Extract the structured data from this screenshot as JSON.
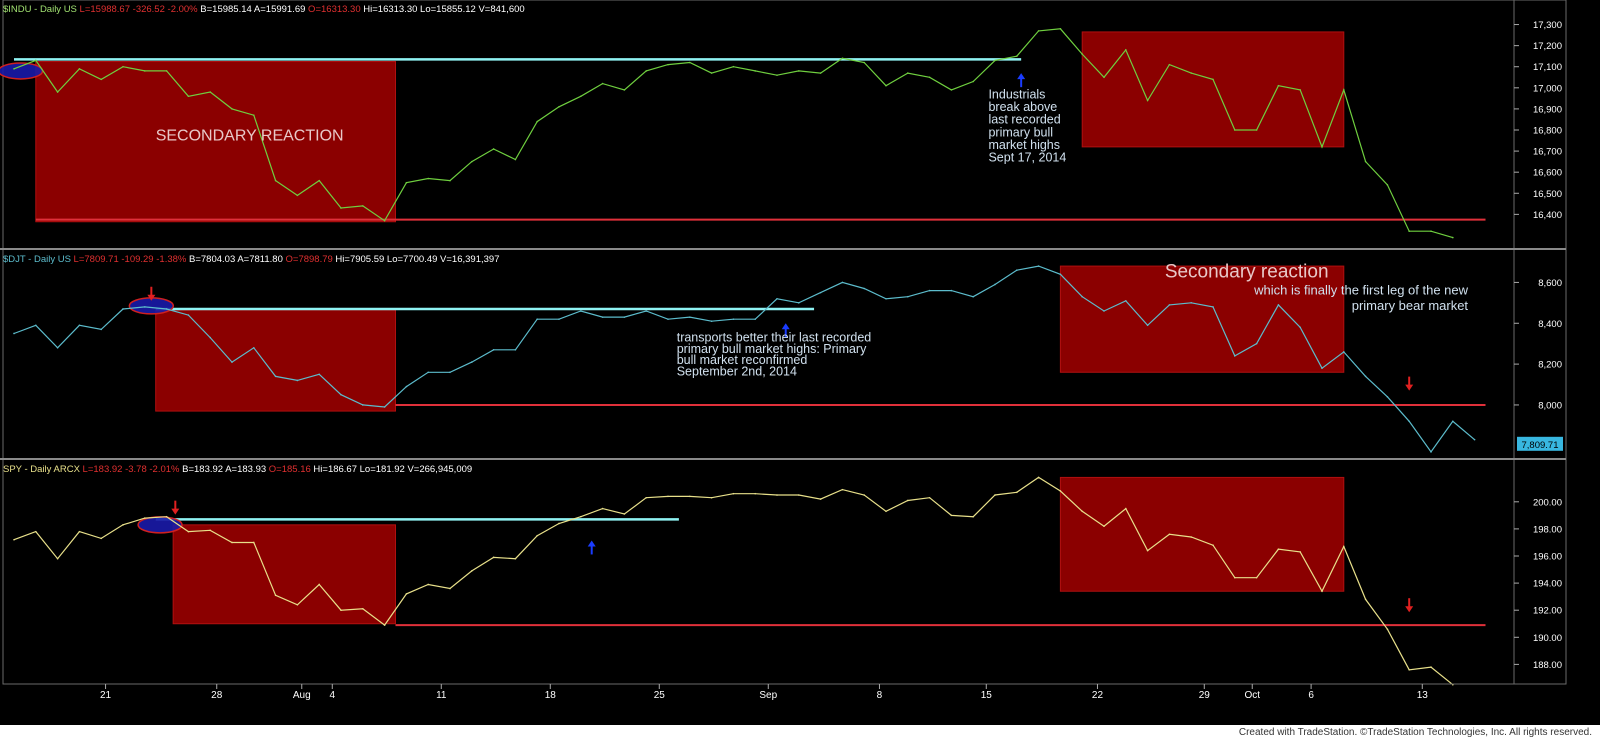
{
  "footer": "Created with TradeStation. ©TradeStation Technologies, Inc. All rights reserved.",
  "colors": {
    "indu": "#6fcf3f",
    "djt": "#5cbccc",
    "spy": "#e8e08a",
    "box_fill": "#8b0000",
    "support_line": "#e0303a",
    "resistance_line": "#8ff3f3",
    "up_arrow": "#1a3cff",
    "down_arrow": "#e02020",
    "last_price_tag": "#38b7e0"
  },
  "chart_data": [
    {
      "type": "line",
      "panel": "top",
      "header": [
        {
          "text": "$INDU - Daily  US",
          "color": "#a0e070"
        },
        {
          "text": "L=15988.67",
          "color": "#e03030"
        },
        {
          "text": "-326.52",
          "color": "#e03030"
        },
        {
          "text": "-2.00%",
          "color": "#e03030"
        },
        {
          "text": "B=15985.14",
          "color": "#ffffff"
        },
        {
          "text": "A=15991.69",
          "color": "#ffffff"
        },
        {
          "text": "O=16313.30",
          "color": "#e03030"
        },
        {
          "text": "Hi=16313.30",
          "color": "#ffffff"
        },
        {
          "text": "Lo=15855.12",
          "color": "#ffffff"
        },
        {
          "text": "V=841,600",
          "color": "#ffffff"
        }
      ],
      "ylim": [
        16250,
        17350
      ],
      "yticks": [
        16400,
        16500,
        16600,
        16700,
        16800,
        16900,
        17000,
        17100,
        17200,
        17300
      ],
      "ytick_labels": [
        "16,400",
        "16,500",
        "16,600",
        "16,700",
        "16,800",
        "16,900",
        "17,000",
        "17,100",
        "17,200",
        "17,300"
      ],
      "series": [
        {
          "values": [
            17090,
            17130,
            16980,
            17090,
            17040,
            17100,
            17080,
            17080,
            16960,
            16980,
            16900,
            16870,
            16560,
            16490,
            16560,
            16430,
            16440,
            16370,
            16550,
            16570,
            16560,
            16650,
            16710,
            16660,
            16840,
            16910,
            16960,
            17020,
            16990,
            17080,
            17110,
            17120,
            17070,
            17100,
            17080,
            17060,
            17080,
            17070,
            17140,
            17120,
            17010,
            17070,
            17050,
            16990,
            17030,
            17130,
            17150,
            17270,
            17280,
            17160,
            17050,
            17180,
            16940,
            17110,
            17070,
            17040,
            16800,
            16800,
            17010,
            16990,
            16720,
            16990,
            16650,
            16540,
            16320,
            16320,
            16290
          ]
        }
      ],
      "boxes": [
        {
          "x0": 1,
          "x1": 17.5,
          "y0": 17125,
          "y1": 16365
        },
        {
          "x0": 49,
          "x1": 61,
          "y0": 17265,
          "y1": 16720
        }
      ],
      "support": {
        "x0": 1,
        "x1": 67.5,
        "y": 16375
      },
      "resistance": {
        "x0": 0,
        "x1": 46.2,
        "y": 17135
      },
      "ellipse": {
        "x": 0.3,
        "y": 17080
      },
      "up_arrows": [
        {
          "x": 46.2,
          "y": 17060
        }
      ],
      "down_arrows": [],
      "annotations": [
        {
          "text": "SECONDARY REACTION",
          "x": 6.5,
          "y": 16750,
          "anchor": "start",
          "size": 16,
          "color": "#e8c8c8"
        },
        {
          "text": "Industrials",
          "x": 44.7,
          "y": 16950,
          "anchor": "start",
          "size": 12.5,
          "color": "#d0e0ee"
        },
        {
          "text": "break above",
          "x": 44.7,
          "y": 16890,
          "anchor": "start",
          "size": 12.5,
          "color": "#d0e0ee"
        },
        {
          "text": "last recorded",
          "x": 44.7,
          "y": 16830,
          "anchor": "start",
          "size": 12.5,
          "color": "#d0e0ee"
        },
        {
          "text": "primary bull",
          "x": 44.7,
          "y": 16770,
          "anchor": "start",
          "size": 12.5,
          "color": "#d0e0ee"
        },
        {
          "text": "market highs",
          "x": 44.7,
          "y": 16710,
          "anchor": "start",
          "size": 12.5,
          "color": "#d0e0ee"
        },
        {
          "text": "Sept 17, 2014",
          "x": 44.7,
          "y": 16650,
          "anchor": "start",
          "size": 12.5,
          "color": "#d0e0ee"
        }
      ]
    },
    {
      "type": "line",
      "panel": "middle",
      "header": [
        {
          "text": "$DJT - Daily  US",
          "color": "#5cbccc"
        },
        {
          "text": "L=7809.71",
          "color": "#e03030"
        },
        {
          "text": "-109.29",
          "color": "#e03030"
        },
        {
          "text": "-1.38%",
          "color": "#e03030"
        },
        {
          "text": "B=7804.03",
          "color": "#ffffff"
        },
        {
          "text": "A=7811.80",
          "color": "#ffffff"
        },
        {
          "text": "O=7898.79",
          "color": "#e03030"
        },
        {
          "text": "Hi=7905.59",
          "color": "#ffffff"
        },
        {
          "text": "Lo=7700.49",
          "color": "#ffffff"
        },
        {
          "text": "V=16,391,397",
          "color": "#ffffff"
        }
      ],
      "ylim": [
        7750,
        8700
      ],
      "yticks": [
        8000,
        8200,
        8400,
        8600
      ],
      "ytick_labels": [
        "8,000",
        "8,200",
        "8,400",
        "8,600"
      ],
      "series": [
        {
          "values": [
            8350,
            8390,
            8280,
            8390,
            8370,
            8470,
            8480,
            8470,
            8440,
            8330,
            8210,
            8280,
            8140,
            8120,
            8150,
            8050,
            8000,
            7990,
            8090,
            8160,
            8160,
            8210,
            8270,
            8270,
            8420,
            8420,
            8460,
            8430,
            8430,
            8460,
            8420,
            8430,
            8410,
            8420,
            8420,
            8520,
            8500,
            8550,
            8600,
            8570,
            8520,
            8530,
            8560,
            8560,
            8530,
            8590,
            8660,
            8680,
            8640,
            8530,
            8460,
            8510,
            8390,
            8490,
            8500,
            8480,
            8240,
            8300,
            8490,
            8380,
            8180,
            8260,
            8140,
            8040,
            7920,
            7770,
            7920,
            7830
          ]
        }
      ],
      "boxes": [
        {
          "x0": 6.5,
          "x1": 17.5,
          "y0": 8465,
          "y1": 7970
        },
        {
          "x0": 48,
          "x1": 61,
          "y0": 8680,
          "y1": 8160
        }
      ],
      "support": {
        "x0": 17.5,
        "x1": 67.5,
        "y": 8000
      },
      "resistance": {
        "x0": 6.5,
        "x1": 36.7,
        "y": 8470
      },
      "ellipse": {
        "x": 6.3,
        "y": 8485
      },
      "up_arrows": [
        {
          "x": 35.4,
          "y": 8390
        }
      ],
      "down_arrows": [
        {
          "x": 6.3,
          "y": 8520
        },
        {
          "x": 64,
          "y": 8080
        }
      ],
      "last_price": {
        "value": "7,809.71",
        "y": 7809.71
      },
      "annotations": [
        {
          "text": "Secondary reaction",
          "x": 60.3,
          "y": 8625,
          "anchor": "end",
          "size": 19,
          "color": "#e8c8c8"
        },
        {
          "text": "which is finally the first leg of the new",
          "x": 66.7,
          "y": 8540,
          "anchor": "end",
          "size": 13,
          "color": "#d0e0ee"
        },
        {
          "text": "primary bear market",
          "x": 66.7,
          "y": 8465,
          "anchor": "end",
          "size": 13,
          "color": "#d0e0ee"
        },
        {
          "text": "transports better their last recorded",
          "x": 30.4,
          "y": 8310,
          "anchor": "start",
          "size": 12.5,
          "color": "#d0e0ee"
        },
        {
          "text": "primary bull market highs: Primary",
          "x": 30.4,
          "y": 8255,
          "anchor": "start",
          "size": 12.5,
          "color": "#d0e0ee"
        },
        {
          "text": "bull market reconfirmed",
          "x": 30.4,
          "y": 8200,
          "anchor": "start",
          "size": 12.5,
          "color": "#d0e0ee"
        },
        {
          "text": "September 2nd, 2014",
          "x": 30.4,
          "y": 8145,
          "anchor": "start",
          "size": 12.5,
          "color": "#d0e0ee"
        }
      ]
    },
    {
      "type": "line",
      "panel": "bottom",
      "header": [
        {
          "text": "SPY - Daily  ARCX",
          "color": "#e8e08a"
        },
        {
          "text": "L=183.92",
          "color": "#e03030"
        },
        {
          "text": "-3.78",
          "color": "#e03030"
        },
        {
          "text": "-2.01%",
          "color": "#e03030"
        },
        {
          "text": "B=183.92",
          "color": "#ffffff"
        },
        {
          "text": "A=183.93",
          "color": "#ffffff"
        },
        {
          "text": "O=185.16",
          "color": "#e03030"
        },
        {
          "text": "Hi=186.67",
          "color": "#ffffff"
        },
        {
          "text": "Lo=181.92",
          "color": "#ffffff"
        },
        {
          "text": "V=266,945,009",
          "color": "#ffffff"
        }
      ],
      "ylim": [
        186.7,
        202.2
      ],
      "yticks": [
        188,
        190,
        192,
        194,
        196,
        198,
        200
      ],
      "ytick_labels": [
        "188.00",
        "190.00",
        "192.00",
        "194.00",
        "196.00",
        "198.00",
        "200.00"
      ],
      "series": [
        {
          "values": [
            197.2,
            197.8,
            195.8,
            197.8,
            197.3,
            198.3,
            198.8,
            198.9,
            197.8,
            197.9,
            197.0,
            197.0,
            193.1,
            192.4,
            193.9,
            192.0,
            192.1,
            190.9,
            193.2,
            193.9,
            193.6,
            194.9,
            195.9,
            195.8,
            197.5,
            198.4,
            198.9,
            199.5,
            199.1,
            200.3,
            200.4,
            200.4,
            200.3,
            200.6,
            200.6,
            200.5,
            200.5,
            200.2,
            200.9,
            200.5,
            199.3,
            200.1,
            200.3,
            199.0,
            198.9,
            200.5,
            200.7,
            201.8,
            200.8,
            199.3,
            198.2,
            199.5,
            196.4,
            197.6,
            197.4,
            196.8,
            194.4,
            194.4,
            196.5,
            196.3,
            193.4,
            196.7,
            192.8,
            190.6,
            187.6,
            187.8,
            186.5
          ]
        }
      ],
      "boxes": [
        {
          "x0": 7.3,
          "x1": 17.5,
          "y0": 198.3,
          "y1": 191.0
        },
        {
          "x0": 48,
          "x1": 61,
          "y0": 201.8,
          "y1": 193.4
        }
      ],
      "support": {
        "x0": 17.5,
        "x1": 67.5,
        "y": 190.9
      },
      "resistance": {
        "x0": 6.5,
        "x1": 30.5,
        "y": 198.7
      },
      "ellipse": {
        "x": 6.7,
        "y": 198.3
      },
      "up_arrows": [
        {
          "x": 26.5,
          "y": 197.0
        }
      ],
      "down_arrows": [
        {
          "x": 7.4,
          "y": 199.2
        },
        {
          "x": 64,
          "y": 192.0
        }
      ],
      "annotations": []
    }
  ],
  "x_axis": {
    "ticks": [
      {
        "x": 4.2,
        "label": "21"
      },
      {
        "x": 9.3,
        "label": "28"
      },
      {
        "x": 13.2,
        "label": "Aug"
      },
      {
        "x": 14.6,
        "label": "4"
      },
      {
        "x": 19.6,
        "label": "11"
      },
      {
        "x": 24.6,
        "label": "18"
      },
      {
        "x": 29.6,
        "label": "25"
      },
      {
        "x": 34.6,
        "label": "Sep"
      },
      {
        "x": 39.7,
        "label": "8"
      },
      {
        "x": 44.6,
        "label": "15"
      },
      {
        "x": 49.7,
        "label": "22"
      },
      {
        "x": 54.6,
        "label": "29"
      },
      {
        "x": 56.8,
        "label": "Oct"
      },
      {
        "x": 59.5,
        "label": "6"
      },
      {
        "x": 64.6,
        "label": "13"
      }
    ]
  }
}
